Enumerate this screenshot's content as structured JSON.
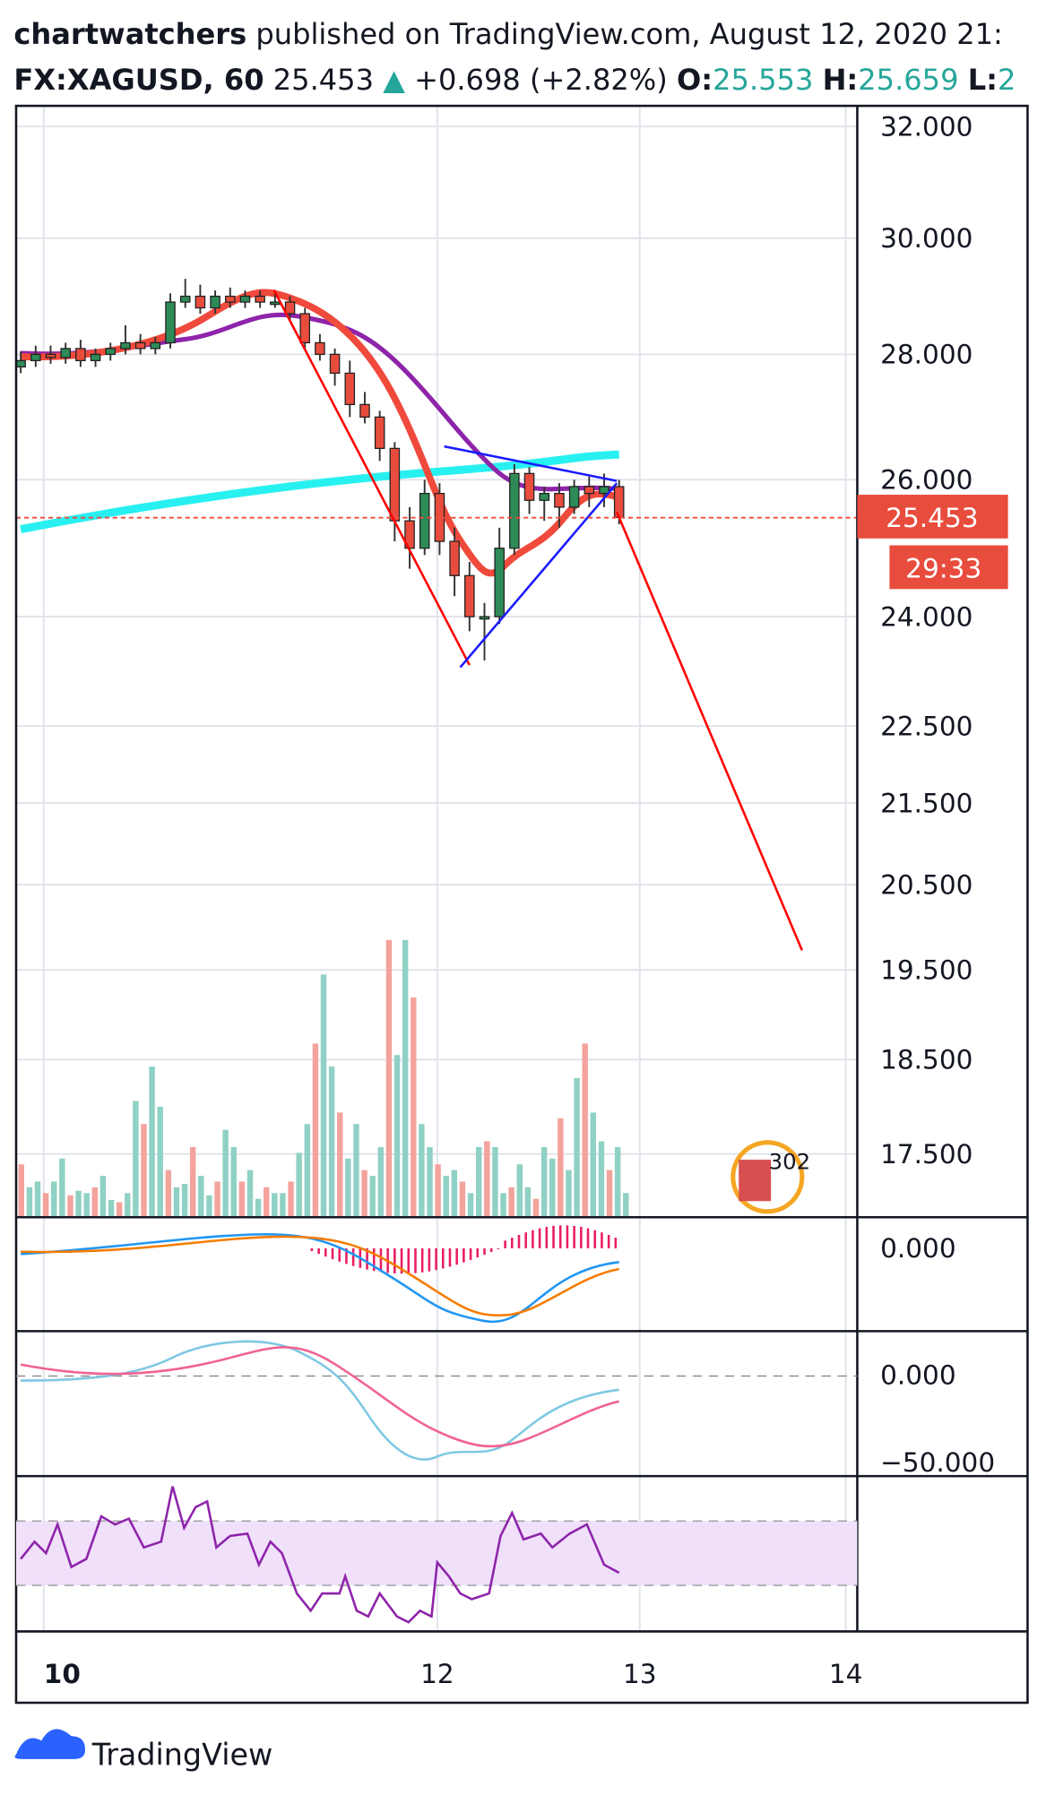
{
  "header": {
    "author": "chartwatchers",
    "published": "published on TradingView.com, August 12, 2020 21:",
    "symbol": "FX:XAGUSD, 60",
    "last": "25.453",
    "change": "+0.698 (+2.82%)",
    "o_label": "O:",
    "o_value": "25.553",
    "h_label": "H:",
    "h_value": "25.659",
    "l_label": "L:",
    "l_value": "2"
  },
  "chart_data": {
    "type": "candlestick",
    "open": [
      27.8,
      27.9,
      28.0,
      27.95,
      28.1,
      27.9,
      28.0,
      28.1,
      28.2,
      28.1,
      28.2,
      28.9,
      29.0,
      28.8,
      29.0,
      28.9,
      29.0,
      28.9,
      28.9,
      28.7,
      28.2,
      28.0,
      27.7,
      27.2,
      27.0,
      26.5,
      25.4,
      25.0,
      25.8,
      25.1,
      24.6,
      24.0,
      24.0,
      25.0,
      26.1,
      25.7,
      25.8,
      25.6,
      25.9,
      25.8,
      25.9
    ],
    "high": [
      28.05,
      28.15,
      28.15,
      28.2,
      28.25,
      28.1,
      28.2,
      28.5,
      28.35,
      28.3,
      29.05,
      29.3,
      29.2,
      29.1,
      29.15,
      29.1,
      29.1,
      29.05,
      29.0,
      28.8,
      28.35,
      28.1,
      27.9,
      27.4,
      27.1,
      26.6,
      25.6,
      26.0,
      25.95,
      25.3,
      24.8,
      24.2,
      25.3,
      26.25,
      26.2,
      25.9,
      25.95,
      26.0,
      26.05,
      26.1,
      26.0
    ],
    "low": [
      27.7,
      27.8,
      27.85,
      27.85,
      27.8,
      27.8,
      27.9,
      28.0,
      28.0,
      28.0,
      28.1,
      28.8,
      28.7,
      28.7,
      28.8,
      28.8,
      28.8,
      28.8,
      28.6,
      28.1,
      27.9,
      27.5,
      27.0,
      26.9,
      26.3,
      25.1,
      24.7,
      24.9,
      24.9,
      24.3,
      23.8,
      23.4,
      23.9,
      24.9,
      25.5,
      25.4,
      25.3,
      25.5,
      25.6,
      25.6,
      25.35
    ],
    "close": [
      27.9,
      28.0,
      27.95,
      28.1,
      27.9,
      28.0,
      28.1,
      28.2,
      28.1,
      28.2,
      28.9,
      29.0,
      28.8,
      29.0,
      28.9,
      29.0,
      28.9,
      28.9,
      28.7,
      28.2,
      28.0,
      27.7,
      27.2,
      27.0,
      26.5,
      25.4,
      25.0,
      25.8,
      25.1,
      24.6,
      24.0,
      24.0,
      25.0,
      26.1,
      25.7,
      25.8,
      25.6,
      25.9,
      25.8,
      25.9,
      25.45
    ],
    "up_color": "#2e8b57",
    "down_color": "#e84c3d",
    "yticks": [
      {
        "value": 32,
        "label": "32.000"
      },
      {
        "value": 30,
        "label": "30.000"
      },
      {
        "value": 28,
        "label": "28.000"
      },
      {
        "value": 26,
        "label": "26.000"
      },
      {
        "value": 24,
        "label": "24.000"
      },
      {
        "value": 22.5,
        "label": "22.500"
      },
      {
        "value": 21.5,
        "label": "21.500"
      },
      {
        "value": 20.5,
        "label": "20.500"
      },
      {
        "value": 19.5,
        "label": "19.500"
      },
      {
        "value": 18.5,
        "label": "18.500"
      },
      {
        "value": 17.5,
        "label": "17.500"
      }
    ],
    "xtick_labels": [
      "10",
      "12",
      "13",
      "14"
    ],
    "price_label": "25.453",
    "countdown": "29:33"
  },
  "macd_axis": "0.000",
  "osc_axis": [
    "0.000",
    "−50.000"
  ],
  "badge": "302",
  "footer": "TradingView"
}
